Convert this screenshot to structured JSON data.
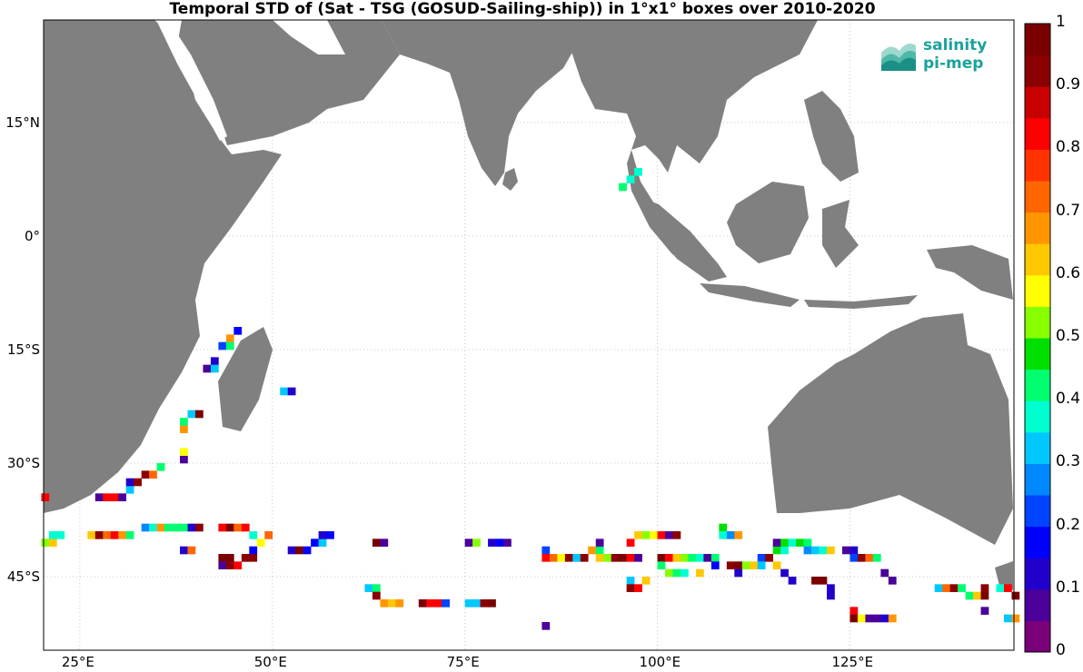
{
  "title": "Temporal STD of (Sat - TSG (GOSUD-Sailing-ship)) in 1°x1° boxes over 2010-2020",
  "logo": {
    "line1": "salinity",
    "line2": "pi-mep",
    "color": "#1aa39a"
  },
  "colors": {
    "land": "#808080",
    "grid": "#c8c8c8"
  },
  "x_ticks": [
    {
      "lon": 25,
      "label": "25°E"
    },
    {
      "lon": 50,
      "label": "50°E"
    },
    {
      "lon": 75,
      "label": "75°E"
    },
    {
      "lon": 100,
      "label": "100°E"
    },
    {
      "lon": 125,
      "label": "125°E"
    }
  ],
  "y_ticks": [
    {
      "lat": 15,
      "label": "15°N"
    },
    {
      "lat": 0,
      "label": "0°"
    },
    {
      "lat": -15,
      "label": "15°S"
    },
    {
      "lat": -30,
      "label": "30°S"
    },
    {
      "lat": -45,
      "label": "45°S"
    }
  ],
  "colorbar": {
    "min": 0,
    "max": 1,
    "tick_labels": [
      "1",
      "0.9",
      "0.8",
      "0.7",
      "0.6",
      "0.5",
      "0.4",
      "0.3",
      "0.2",
      "0.1",
      "0"
    ],
    "colors": [
      "#7a007a",
      "#4a0099",
      "#2200cc",
      "#0000ff",
      "#0044ff",
      "#0088ff",
      "#00c8ff",
      "#00ffd0",
      "#00ff70",
      "#00e000",
      "#88ff00",
      "#ffff00",
      "#ffc800",
      "#ff9600",
      "#ff6600",
      "#ff3300",
      "#ff0000",
      "#c80000",
      "#8b0000",
      "#7a0000"
    ]
  },
  "chart_data": {
    "type": "heatmap",
    "title": "Temporal STD of (Sat - TSG (GOSUD-Sailing-ship)) in 1°x1° boxes over 2010-2020",
    "lon_range": [
      20,
      146
    ],
    "lat_range": [
      -53,
      30
    ],
    "cells": [
      [
        20,
        -35,
        0.8
      ],
      [
        27,
        -35,
        0.05
      ],
      [
        28,
        -35,
        0.8
      ],
      [
        29,
        -35,
        0.8
      ],
      [
        30,
        -35,
        0.05
      ],
      [
        31,
        -34,
        0.3
      ],
      [
        31,
        -33,
        0.1
      ],
      [
        32,
        -33,
        0.9
      ],
      [
        33,
        -32,
        0.9
      ],
      [
        34,
        -32,
        0.7
      ],
      [
        35,
        -31,
        0.4
      ],
      [
        38,
        -30,
        0.05
      ],
      [
        38,
        -29,
        0.55
      ],
      [
        38,
        -26,
        0.65
      ],
      [
        38,
        -25,
        0.4
      ],
      [
        39,
        -24,
        0.3
      ],
      [
        40,
        -24,
        1.0
      ],
      [
        41,
        -18,
        0.05
      ],
      [
        42,
        -17,
        0.1
      ],
      [
        42,
        -18,
        0.3
      ],
      [
        43,
        -15,
        0.2
      ],
      [
        44,
        -14,
        0.65
      ],
      [
        44,
        -15,
        0.4
      ],
      [
        45,
        -13,
        0.15
      ],
      [
        51,
        -21,
        0.3
      ],
      [
        52,
        -21,
        0.1
      ],
      [
        20,
        -41,
        0.5
      ],
      [
        21,
        -41,
        0.6
      ],
      [
        21,
        -40,
        0.35
      ],
      [
        22,
        -40,
        0.35
      ],
      [
        26,
        -40,
        0.6
      ],
      [
        27,
        -40,
        0.9
      ],
      [
        28,
        -40,
        0.7
      ],
      [
        29,
        -40,
        0.8
      ],
      [
        30,
        -40,
        0.65
      ],
      [
        31,
        -40,
        0.4
      ],
      [
        33,
        -39,
        0.25
      ],
      [
        34,
        -39,
        0.35
      ],
      [
        35,
        -39,
        0.65
      ],
      [
        36,
        -39,
        0.4
      ],
      [
        37,
        -39,
        0.4
      ],
      [
        38,
        -39,
        0.4
      ],
      [
        39,
        -39,
        0.1
      ],
      [
        40,
        -39,
        0.9
      ],
      [
        38,
        -42,
        0.1
      ],
      [
        39,
        -42,
        0.7
      ],
      [
        43,
        -43,
        1.0
      ],
      [
        44,
        -43,
        1.0
      ],
      [
        43,
        -44,
        0.05
      ],
      [
        44,
        -44,
        0.9
      ],
      [
        45,
        -44,
        0.8
      ],
      [
        46,
        -43,
        0.9
      ],
      [
        47,
        -43,
        0.9
      ],
      [
        47,
        -42,
        0.15
      ],
      [
        43,
        -39,
        0.8
      ],
      [
        44,
        -39,
        1.0
      ],
      [
        45,
        -39,
        0.7
      ],
      [
        46,
        -39,
        0.8
      ],
      [
        47,
        -40,
        0.35
      ],
      [
        48,
        -41,
        0.55
      ],
      [
        49,
        -40,
        0.7
      ],
      [
        52,
        -42,
        0.1
      ],
      [
        53,
        -42,
        1.0
      ],
      [
        54,
        -42,
        0.15
      ],
      [
        55,
        -41,
        0.15
      ],
      [
        56,
        -41,
        0.3
      ],
      [
        56,
        -40,
        0.1
      ],
      [
        57,
        -40,
        0.15
      ],
      [
        63,
        -41,
        1.0
      ],
      [
        64,
        -41,
        0.05
      ],
      [
        62,
        -47,
        0.3
      ],
      [
        63,
        -47,
        0.4
      ],
      [
        63,
        -48,
        0.9
      ],
      [
        64,
        -49,
        0.65
      ],
      [
        65,
        -49,
        0.6
      ],
      [
        66,
        -49,
        0.65
      ],
      [
        69,
        -49,
        1.0
      ],
      [
        70,
        -49,
        0.8
      ],
      [
        71,
        -49,
        0.8
      ],
      [
        72,
        -49,
        0.2
      ],
      [
        75,
        -49,
        0.3
      ],
      [
        76,
        -49,
        0.3
      ],
      [
        77,
        -49,
        0.9
      ],
      [
        78,
        -49,
        1.0
      ],
      [
        75,
        -41,
        0.05
      ],
      [
        76,
        -41,
        0.5
      ],
      [
        78,
        -41,
        0.1
      ],
      [
        79,
        -41,
        0.15
      ],
      [
        80,
        -41,
        0.05
      ],
      [
        85,
        -52,
        0.05
      ],
      [
        85,
        -42,
        0.2
      ],
      [
        85,
        -43,
        0.8
      ],
      [
        86,
        -43,
        0.7
      ],
      [
        87,
        -43,
        0.55
      ],
      [
        88,
        -43,
        0.9
      ],
      [
        89,
        -43,
        0.3
      ],
      [
        90,
        -43,
        0.9
      ],
      [
        91,
        -42,
        0.65
      ],
      [
        92,
        -42,
        0.4
      ],
      [
        92,
        -41,
        0.05
      ],
      [
        92,
        -43,
        0.6
      ],
      [
        93,
        -43,
        0.5
      ],
      [
        94,
        -43,
        0.9
      ],
      [
        95,
        -43,
        1.0
      ],
      [
        96,
        -43,
        0.8
      ],
      [
        97,
        -43,
        0.05
      ],
      [
        96,
        -41,
        0.8
      ],
      [
        97,
        -40,
        0.6
      ],
      [
        98,
        -40,
        0.5
      ],
      [
        99,
        -40,
        0.55
      ],
      [
        100,
        -40,
        0.8
      ],
      [
        101,
        -40,
        0.05
      ],
      [
        102,
        -40,
        0.9
      ],
      [
        96,
        -46,
        0.3
      ],
      [
        96,
        -47,
        0.9
      ],
      [
        97,
        -47,
        0.8
      ],
      [
        98,
        -46,
        0.6
      ],
      [
        100,
        -43,
        1.0
      ],
      [
        100,
        -44,
        0.4
      ],
      [
        101,
        -43,
        0.8
      ],
      [
        101,
        -45,
        0.5
      ],
      [
        102,
        -43,
        0.6
      ],
      [
        102,
        -45,
        0.4
      ],
      [
        103,
        -43,
        0.5
      ],
      [
        103,
        -45,
        0.35
      ],
      [
        104,
        -43,
        0.4
      ],
      [
        105,
        -43,
        0.35
      ],
      [
        105,
        -45,
        0.6
      ],
      [
        106,
        -43,
        0.05
      ],
      [
        107,
        -43,
        0.4
      ],
      [
        107,
        -44,
        0.15
      ],
      [
        108,
        -39,
        0.45
      ],
      [
        108,
        -40,
        0.35
      ],
      [
        109,
        -40,
        0.25
      ],
      [
        110,
        -40,
        0.65
      ],
      [
        109,
        -44,
        0.9
      ],
      [
        110,
        -44,
        1.0
      ],
      [
        110,
        -45,
        0.1
      ],
      [
        111,
        -44,
        0.5
      ],
      [
        112,
        -44,
        0.6
      ],
      [
        113,
        -43,
        0.2
      ],
      [
        113,
        -44,
        0.3
      ],
      [
        114,
        -43,
        0.9
      ],
      [
        115,
        -42,
        0.45
      ],
      [
        115,
        -44,
        0.6
      ],
      [
        116,
        -42,
        0.35
      ],
      [
        116,
        -45,
        0.1
      ],
      [
        117,
        -46,
        0.1
      ],
      [
        115,
        -41,
        0.05
      ],
      [
        116,
        -41,
        0.45
      ],
      [
        117,
        -41,
        0.35
      ],
      [
        118,
        -41,
        0.45
      ],
      [
        119,
        -41,
        0.4
      ],
      [
        119,
        -42,
        0.25
      ],
      [
        120,
        -42,
        0.3
      ],
      [
        121,
        -42,
        0.35
      ],
      [
        122,
        -42,
        0.6
      ],
      [
        120,
        -46,
        1.0
      ],
      [
        121,
        -46,
        1.0
      ],
      [
        122,
        -47,
        0.1
      ],
      [
        122,
        -48,
        0.1
      ],
      [
        124,
        -42,
        0.05
      ],
      [
        125,
        -42,
        0.1
      ],
      [
        125,
        -43,
        0.2
      ],
      [
        126,
        -43,
        0.9
      ],
      [
        127,
        -43,
        0.7
      ],
      [
        128,
        -43,
        0.4
      ],
      [
        129,
        -45,
        0.05
      ],
      [
        130,
        -46,
        0.05
      ],
      [
        125,
        -50,
        0.8
      ],
      [
        125,
        -51,
        1.0
      ],
      [
        126,
        -51,
        0.55
      ],
      [
        127,
        -51,
        0.05
      ],
      [
        128,
        -51,
        0.05
      ],
      [
        129,
        -51,
        0.1
      ],
      [
        130,
        -51,
        0.65
      ],
      [
        136,
        -47,
        0.3
      ],
      [
        137,
        -47,
        0.7
      ],
      [
        138,
        -47,
        0.9
      ],
      [
        139,
        -47,
        0.4
      ],
      [
        140,
        -48,
        0.4
      ],
      [
        141,
        -48,
        0.6
      ],
      [
        142,
        -48,
        1.0
      ],
      [
        142,
        -47,
        0.9
      ],
      [
        142,
        -50,
        0.05
      ],
      [
        144,
        -47,
        0.35
      ],
      [
        145,
        -47,
        0.8
      ],
      [
        146,
        -48,
        1.0
      ],
      [
        145,
        -51,
        0.3
      ],
      [
        146,
        -51,
        0.65
      ],
      [
        97,
        8,
        0.35
      ],
      [
        95,
        6,
        0.4
      ],
      [
        96,
        7,
        0.35
      ]
    ]
  }
}
